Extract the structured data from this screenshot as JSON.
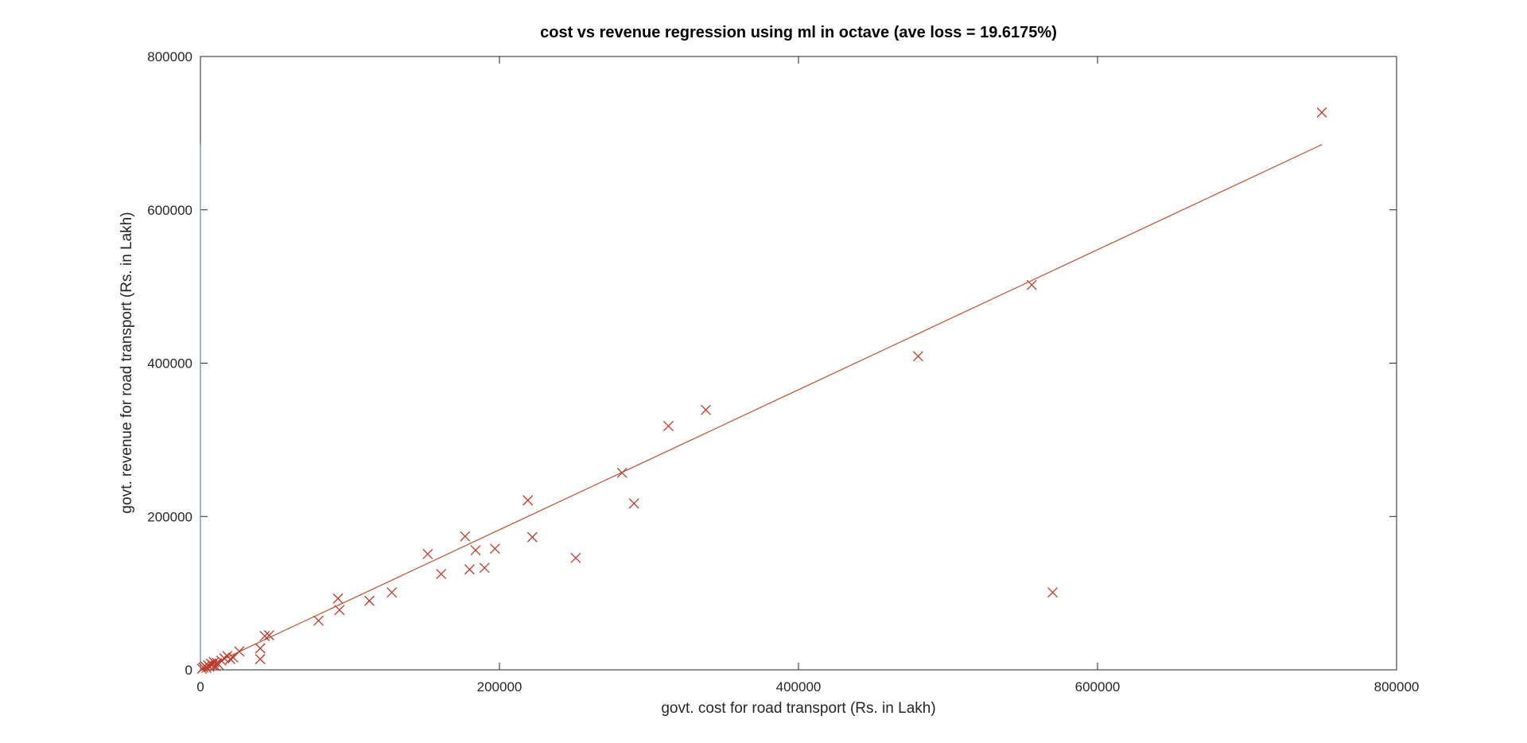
{
  "chart_data": {
    "type": "scatter",
    "title": "cost vs revenue regression using ml in octave (ave loss = 19.6175%)",
    "xlabel": "govt. cost for road transport (Rs. in Lakh)",
    "ylabel": "govt. revenue for road transport (Rs. in Lakh)",
    "xlim": [
      0,
      800000
    ],
    "ylim": [
      0,
      800000
    ],
    "xticks": [
      0,
      200000,
      400000,
      600000,
      800000
    ],
    "yticks": [
      0,
      200000,
      400000,
      600000,
      800000
    ],
    "xtick_labels": [
      "0",
      "200000",
      "400000",
      "600000",
      "800000"
    ],
    "ytick_labels": [
      "0",
      "200000",
      "400000",
      "600000",
      "800000"
    ],
    "grid": false,
    "colors": {
      "marker": "#c0392b",
      "line": "#c0502b",
      "axes": "#262626",
      "vertical_line": "#4a90c2"
    },
    "points": [
      {
        "x": 1000,
        "y": 1500
      },
      {
        "x": 2000,
        "y": 3000
      },
      {
        "x": 3000,
        "y": 5000
      },
      {
        "x": 4000,
        "y": 2500
      },
      {
        "x": 5000,
        "y": 6000
      },
      {
        "x": 6000,
        "y": 4000
      },
      {
        "x": 7000,
        "y": 8000
      },
      {
        "x": 8000,
        "y": 6500
      },
      {
        "x": 9000,
        "y": 10000
      },
      {
        "x": 10000,
        "y": 5000
      },
      {
        "x": 11000,
        "y": 9000
      },
      {
        "x": 12000,
        "y": 7000
      },
      {
        "x": 14000,
        "y": 12000
      },
      {
        "x": 16000,
        "y": 15000
      },
      {
        "x": 18000,
        "y": 18000
      },
      {
        "x": 20000,
        "y": 14000
      },
      {
        "x": 22000,
        "y": 16000
      },
      {
        "x": 26000,
        "y": 24000
      },
      {
        "x": 40000,
        "y": 14000
      },
      {
        "x": 40000,
        "y": 28000
      },
      {
        "x": 43000,
        "y": 44000
      },
      {
        "x": 46000,
        "y": 45000
      },
      {
        "x": 79000,
        "y": 64000
      },
      {
        "x": 92000,
        "y": 93000
      },
      {
        "x": 93000,
        "y": 78000
      },
      {
        "x": 113000,
        "y": 90000
      },
      {
        "x": 128000,
        "y": 101000
      },
      {
        "x": 152000,
        "y": 151000
      },
      {
        "x": 161000,
        "y": 125000
      },
      {
        "x": 177000,
        "y": 174000
      },
      {
        "x": 180000,
        "y": 131000
      },
      {
        "x": 184000,
        "y": 156000
      },
      {
        "x": 190000,
        "y": 133000
      },
      {
        "x": 197000,
        "y": 158000
      },
      {
        "x": 219000,
        "y": 221000
      },
      {
        "x": 222000,
        "y": 173000
      },
      {
        "x": 251000,
        "y": 146000
      },
      {
        "x": 282000,
        "y": 257000
      },
      {
        "x": 290000,
        "y": 217000
      },
      {
        "x": 313000,
        "y": 318000
      },
      {
        "x": 338000,
        "y": 339000
      },
      {
        "x": 480000,
        "y": 409000
      },
      {
        "x": 556000,
        "y": 502000
      },
      {
        "x": 570000,
        "y": 101000
      },
      {
        "x": 750000,
        "y": 727000
      }
    ],
    "regression_line": [
      {
        "x": 0,
        "y": 0
      },
      {
        "x": 750000,
        "y": 685000
      }
    ],
    "vertical_line": {
      "x": 0,
      "y_from": 0,
      "y_to": 685000
    }
  }
}
